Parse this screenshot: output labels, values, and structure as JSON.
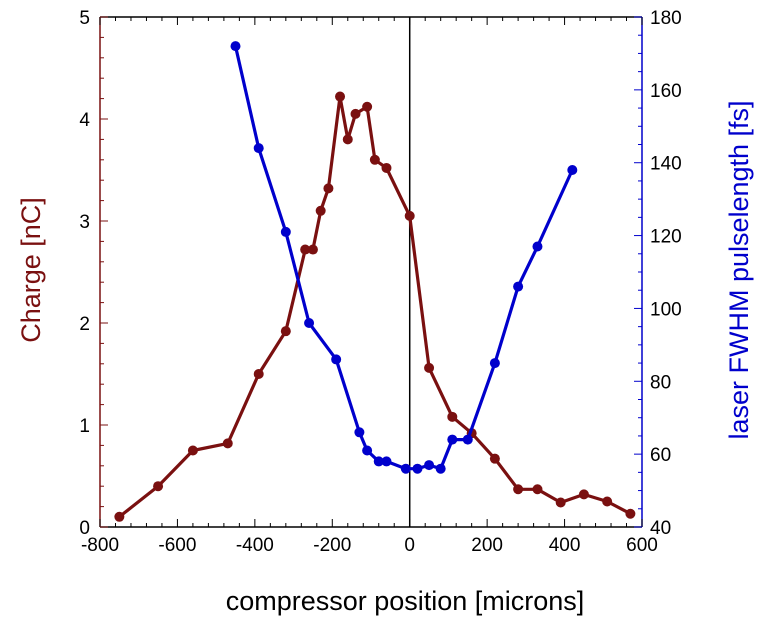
{
  "chart_data": {
    "type": "line",
    "title": "",
    "xlabel": "compressor position [microns]",
    "ylabel_left": "Charge [nC]",
    "ylabel_right": "laser FWHM pulselength [fs]",
    "xlim": [
      -800,
      600
    ],
    "ylim_left": [
      0,
      5
    ],
    "ylim_right": [
      40,
      180
    ],
    "x_ticks": [
      "-800",
      "-600",
      "-400",
      "-200",
      "0",
      "200",
      "400",
      "600"
    ],
    "y_left_ticks": [
      "0",
      "1",
      "2",
      "3",
      "4",
      "5"
    ],
    "y_right_ticks": [
      "40",
      "60",
      "80",
      "100",
      "120",
      "140",
      "160",
      "180"
    ],
    "grid": false,
    "vertical_line_x": 0,
    "series": [
      {
        "axis": "left",
        "color": "#7a1010",
        "x": [
          -750,
          -650,
          -560,
          -470,
          -390,
          -320,
          -270,
          -250,
          -230,
          -210,
          -180,
          -160,
          -140,
          -110,
          -90,
          -60,
          0,
          50,
          110,
          160,
          220,
          280,
          330,
          390,
          450,
          510,
          570
        ],
        "y": [
          0.1,
          0.4,
          0.75,
          0.82,
          1.5,
          1.92,
          2.72,
          2.72,
          3.1,
          3.32,
          4.22,
          3.8,
          4.05,
          4.12,
          3.6,
          3.52,
          3.05,
          1.56,
          1.08,
          0.92,
          0.67,
          0.37,
          0.37,
          0.24,
          0.32,
          0.25,
          0.13
        ]
      },
      {
        "axis": "right",
        "color": "#0000cc",
        "x": [
          -450,
          -390,
          -320,
          -260,
          -190,
          -130,
          -110,
          -80,
          -60,
          -10,
          20,
          50,
          80,
          110,
          150,
          220,
          280,
          330,
          420
        ],
        "y": [
          172,
          144,
          121,
          96,
          86,
          66,
          61,
          58,
          58,
          56,
          56,
          57,
          56,
          64,
          64,
          85,
          106,
          117,
          138
        ]
      }
    ]
  }
}
